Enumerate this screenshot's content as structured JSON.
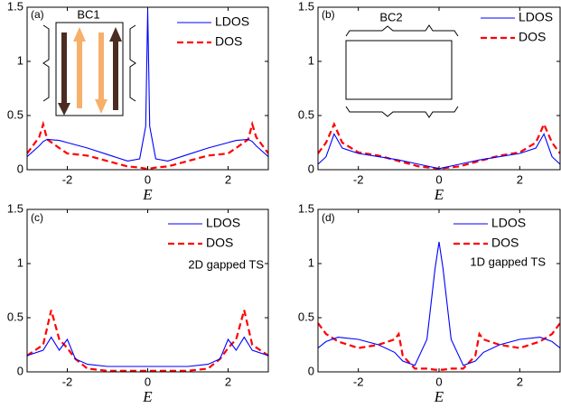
{
  "chart_data": [
    {
      "type": "line",
      "annotations": [
        "(a)",
        "BC1"
      ],
      "xlabel": "E",
      "x": [
        -3,
        -2.7,
        -2.6,
        -2.5,
        -2.2,
        -2,
        -1.5,
        -1,
        -0.5,
        -0.2,
        -0.05,
        0,
        0.05,
        0.2,
        0.5,
        1,
        1.5,
        2,
        2.2,
        2.5,
        2.6,
        2.7,
        3
      ],
      "series": [
        {
          "name": "LDOS",
          "color": "#0000ff",
          "values": [
            0.12,
            0.22,
            0.26,
            0.28,
            0.27,
            0.25,
            0.2,
            0.14,
            0.08,
            0.1,
            0.4,
            1.48,
            0.4,
            0.1,
            0.08,
            0.14,
            0.2,
            0.25,
            0.27,
            0.28,
            0.26,
            0.22,
            0.12
          ]
        },
        {
          "name": "DOS",
          "color": "#ff0000",
          "values": [
            0.15,
            0.3,
            0.42,
            0.28,
            0.2,
            0.15,
            0.13,
            0.08,
            0.03,
            0.02,
            0.01,
            0.01,
            0.01,
            0.02,
            0.03,
            0.08,
            0.13,
            0.15,
            0.2,
            0.28,
            0.42,
            0.3,
            0.15
          ]
        }
      ],
      "xlim": [
        -3,
        3
      ],
      "xticks": [
        -2,
        0,
        2
      ],
      "ylim": [
        0,
        1.5
      ],
      "yticks": [
        0,
        0.5,
        1,
        1.5
      ],
      "legend": "upper right"
    },
    {
      "type": "line",
      "annotations": [
        "(b)",
        "BC2"
      ],
      "xlabel": "E",
      "x": [
        -3,
        -2.8,
        -2.6,
        -2.4,
        -2,
        -1.5,
        -1,
        -0.5,
        0,
        0.5,
        1,
        1.5,
        2,
        2.4,
        2.6,
        2.8,
        3
      ],
      "series": [
        {
          "name": "LDOS",
          "color": "#0000ff",
          "values": [
            0.05,
            0.12,
            0.33,
            0.2,
            0.15,
            0.12,
            0.09,
            0.05,
            0.01,
            0.05,
            0.09,
            0.12,
            0.15,
            0.2,
            0.33,
            0.12,
            0.05
          ]
        },
        {
          "name": "DOS",
          "color": "#ff0000",
          "values": [
            0.15,
            0.25,
            0.42,
            0.25,
            0.16,
            0.13,
            0.08,
            0.03,
            0.01,
            0.03,
            0.08,
            0.13,
            0.16,
            0.25,
            0.42,
            0.25,
            0.15
          ]
        }
      ],
      "xlim": [
        -3,
        3
      ],
      "xticks": [
        -2,
        0,
        2
      ],
      "ylim": [
        0,
        1.5
      ],
      "yticks": [
        0,
        0.5,
        1,
        1.5
      ],
      "legend": "upper right"
    },
    {
      "type": "line",
      "annotations": [
        "(c)",
        "2D gapped TS"
      ],
      "xlabel": "E",
      "x": [
        -3,
        -2.6,
        -2.4,
        -2.2,
        -2,
        -1.8,
        -1.5,
        -1,
        0,
        1,
        1.5,
        1.8,
        2,
        2.2,
        2.4,
        2.6,
        3
      ],
      "series": [
        {
          "name": "LDOS",
          "color": "#0000ff",
          "values": [
            0.15,
            0.2,
            0.32,
            0.2,
            0.3,
            0.12,
            0.07,
            0.05,
            0.05,
            0.05,
            0.07,
            0.12,
            0.3,
            0.2,
            0.32,
            0.2,
            0.15
          ]
        },
        {
          "name": "DOS",
          "color": "#ff0000",
          "values": [
            0.15,
            0.25,
            0.57,
            0.3,
            0.22,
            0.12,
            0.03,
            0.01,
            0.01,
            0.01,
            0.03,
            0.12,
            0.22,
            0.3,
            0.57,
            0.25,
            0.15
          ]
        }
      ],
      "xlim": [
        -3,
        3
      ],
      "xticks": [
        -2,
        0,
        2
      ],
      "ylim": [
        0,
        1.5
      ],
      "yticks": [
        0,
        0.5,
        1,
        1.5
      ],
      "legend": "upper right"
    },
    {
      "type": "line",
      "annotations": [
        "(d)",
        "1D gapped TS"
      ],
      "xlabel": "E",
      "x": [
        -3,
        -2.8,
        -2.5,
        -2,
        -1.5,
        -1.1,
        -1,
        -0.9,
        -0.6,
        -0.3,
        -0.1,
        0,
        0.1,
        0.3,
        0.6,
        0.9,
        1,
        1.1,
        1.5,
        2,
        2.5,
        2.8,
        3
      ],
      "series": [
        {
          "name": "LDOS",
          "color": "#0000ff",
          "values": [
            0.22,
            0.28,
            0.32,
            0.3,
            0.25,
            0.18,
            0.14,
            0.1,
            0.06,
            0.3,
            0.95,
            1.2,
            0.95,
            0.3,
            0.06,
            0.1,
            0.14,
            0.18,
            0.25,
            0.3,
            0.32,
            0.28,
            0.22
          ]
        },
        {
          "name": "DOS",
          "color": "#ff0000",
          "values": [
            0.45,
            0.35,
            0.28,
            0.22,
            0.25,
            0.3,
            0.35,
            0.15,
            0.03,
            0.03,
            0.02,
            0.02,
            0.02,
            0.03,
            0.03,
            0.15,
            0.35,
            0.3,
            0.25,
            0.22,
            0.28,
            0.35,
            0.45
          ]
        }
      ],
      "xlim": [
        -3,
        3
      ],
      "xticks": [
        -2,
        0,
        2
      ],
      "ylim": [
        0,
        1.5
      ],
      "yticks": [
        0,
        0.5,
        1,
        1.5
      ],
      "legend": "upper right"
    }
  ]
}
